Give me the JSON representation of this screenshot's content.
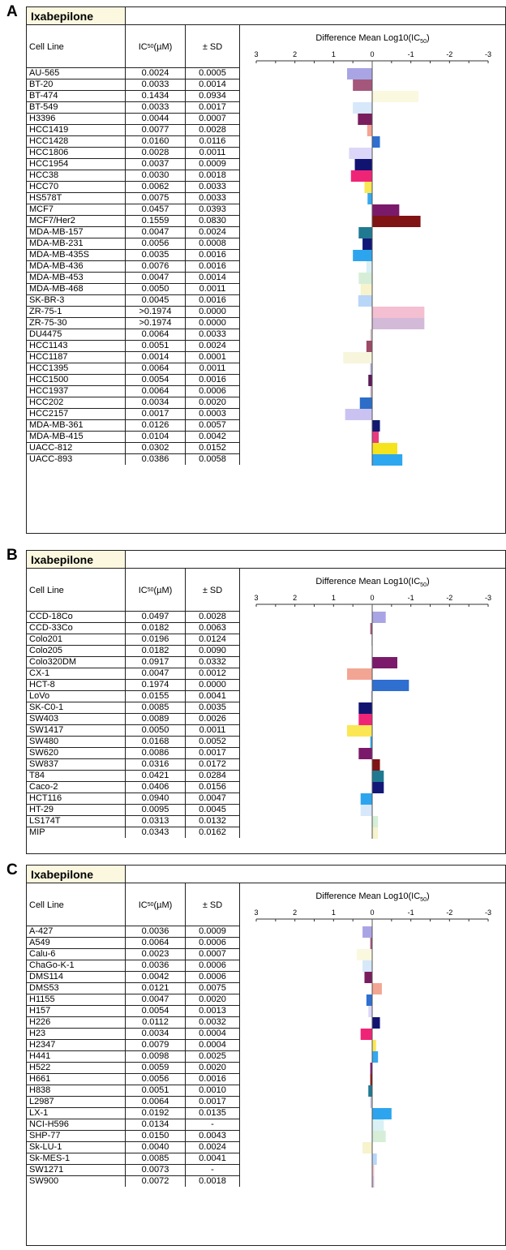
{
  "panels": [
    {
      "label": "A",
      "title": "Ixabepilone",
      "columns": {
        "cell_line": "Cell Line",
        "ic50": "IC",
        "ic50_sub": "50",
        "ic50_unit": "(µM)",
        "sd": "± SD"
      },
      "chart_title_pre": "Difference Mean Log10(IC",
      "chart_title_sub": "50",
      "chart_title_post": ")",
      "rows": [
        {
          "line": "AU-565",
          "ic50": "0.0024",
          "sd": "0.0005"
        },
        {
          "line": "BT-20",
          "ic50": "0.0033",
          "sd": "0.0014"
        },
        {
          "line": "BT-474",
          "ic50": "0.1434",
          "sd": "0.0934"
        },
        {
          "line": "BT-549",
          "ic50": "0.0033",
          "sd": "0.0017"
        },
        {
          "line": "H3396",
          "ic50": "0.0044",
          "sd": "0.0007"
        },
        {
          "line": "HCC1419",
          "ic50": "0.0077",
          "sd": "0.0028"
        },
        {
          "line": "HCC1428",
          "ic50": "0.0160",
          "sd": "0.0116"
        },
        {
          "line": "HCC1806",
          "ic50": "0.0028",
          "sd": "0.0011"
        },
        {
          "line": "HCC1954",
          "ic50": "0.0037",
          "sd": "0.0009"
        },
        {
          "line": "HCC38",
          "ic50": "0.0030",
          "sd": "0.0018"
        },
        {
          "line": "HCC70",
          "ic50": "0.0062",
          "sd": "0.0033"
        },
        {
          "line": "HS578T",
          "ic50": "0.0075",
          "sd": "0.0033"
        },
        {
          "line": "MCF7",
          "ic50": "0.0457",
          "sd": "0.0393"
        },
        {
          "line": "MCF7/Her2",
          "ic50": "0.1559",
          "sd": "0.0830"
        },
        {
          "line": "MDA-MB-157",
          "ic50": "0.0047",
          "sd": "0.0024"
        },
        {
          "line": "MDA-MB-231",
          "ic50": "0.0056",
          "sd": "0.0008"
        },
        {
          "line": "MDA-MB-435S",
          "ic50": "0.0035",
          "sd": "0.0016"
        },
        {
          "line": "MDA-MB-436",
          "ic50": "0.0076",
          "sd": "0.0016"
        },
        {
          "line": "MDA-MB-453",
          "ic50": "0.0047",
          "sd": "0.0014"
        },
        {
          "line": "MDA-MB-468",
          "ic50": "0.0050",
          "sd": "0.0011"
        },
        {
          "line": "SK-BR-3",
          "ic50": "0.0045",
          "sd": "0.0016"
        },
        {
          "line": "ZR-75-1",
          "ic50": ">0.1974",
          "sd": "0.0000"
        },
        {
          "line": "ZR-75-30",
          "ic50": ">0.1974",
          "sd": "0.0000"
        },
        {
          "line": "DU4475",
          "ic50": "0.0064",
          "sd": "0.0033"
        },
        {
          "line": "HCC1143",
          "ic50": "0.0051",
          "sd": "0.0024"
        },
        {
          "line": "HCC1187",
          "ic50": "0.0014",
          "sd": "0.0001"
        },
        {
          "line": "HCC1395",
          "ic50": "0.0064",
          "sd": "0.0011"
        },
        {
          "line": "HCC1500",
          "ic50": "0.0054",
          "sd": "0.0016"
        },
        {
          "line": "HCC1937",
          "ic50": "0.0064",
          "sd": "0.0006"
        },
        {
          "line": "HCC202",
          "ic50": "0.0034",
          "sd": "0.0020"
        },
        {
          "line": "HCC2157",
          "ic50": "0.0017",
          "sd": "0.0003"
        },
        {
          "line": "MDA-MB-361",
          "ic50": "0.0126",
          "sd": "0.0057"
        },
        {
          "line": "MDA-MB-415",
          "ic50": "0.0104",
          "sd": "0.0042"
        },
        {
          "line": "UACC-812",
          "ic50": "0.0302",
          "sd": "0.0152"
        },
        {
          "line": "UACC-893",
          "ic50": "0.0386",
          "sd": "0.0058"
        }
      ]
    },
    {
      "label": "B",
      "title": "Ixabepilone",
      "columns": {
        "cell_line": "Cell Line",
        "ic50": "IC",
        "ic50_sub": "50",
        "ic50_unit": "(µM)",
        "sd": "± SD"
      },
      "chart_title_pre": "Difference Mean Log10(IC",
      "chart_title_sub": "50",
      "chart_title_post": ")",
      "rows": [
        {
          "line": "CCD-18Co",
          "ic50": "0.0497",
          "sd": "0.0028"
        },
        {
          "line": "CCD-33Co",
          "ic50": "0.0182",
          "sd": "0.0063"
        },
        {
          "line": "Colo201",
          "ic50": "0.0196",
          "sd": "0.0124"
        },
        {
          "line": "Colo205",
          "ic50": "0.0182",
          "sd": "0.0090"
        },
        {
          "line": "Colo320DM",
          "ic50": "0.0917",
          "sd": "0.0332"
        },
        {
          "line": "CX-1",
          "ic50": "0.0047",
          "sd": "0.0012"
        },
        {
          "line": "HCT-8",
          "ic50": "0.1974",
          "sd": "0.0000"
        },
        {
          "line": "LoVo",
          "ic50": "0.0155",
          "sd": "0.0041"
        },
        {
          "line": "SK-C0-1",
          "ic50": "0.0085",
          "sd": "0.0035"
        },
        {
          "line": "SW403",
          "ic50": "0.0089",
          "sd": "0.0026"
        },
        {
          "line": "SW1417",
          "ic50": "0.0050",
          "sd": "0.0011"
        },
        {
          "line": "SW480",
          "ic50": "0.0168",
          "sd": "0.0052"
        },
        {
          "line": "SW620",
          "ic50": "0.0086",
          "sd": "0.0017"
        },
        {
          "line": "SW837",
          "ic50": "0.0316",
          "sd": "0.0172"
        },
        {
          "line": "T84",
          "ic50": "0.0421",
          "sd": "0.0284"
        },
        {
          "line": "Caco-2",
          "ic50": "0.0406",
          "sd": "0.0156"
        },
        {
          "line": "HCT116",
          "ic50": "0.0940",
          "sd": "0.0047"
        },
        {
          "line": "HT-29",
          "ic50": "0.0095",
          "sd": "0.0045"
        },
        {
          "line": "LS174T",
          "ic50": "0.0313",
          "sd": "0.0132"
        },
        {
          "line": "MIP",
          "ic50": "0.0343",
          "sd": "0.0162"
        }
      ]
    },
    {
      "label": "C",
      "title": "Ixabepilone",
      "columns": {
        "cell_line": "Cell Line",
        "ic50": "IC",
        "ic50_sub": "50",
        "ic50_unit": "(µM)",
        "sd": "± SD"
      },
      "chart_title_pre": "Difference Mean Log10(IC",
      "chart_title_sub": "50",
      "chart_title_post": ")",
      "rows": [
        {
          "line": "A-427",
          "ic50": "0.0036",
          "sd": "0.0009"
        },
        {
          "line": "A549",
          "ic50": "0.0064",
          "sd": "0.0006"
        },
        {
          "line": "Calu-6",
          "ic50": "0.0023",
          "sd": "0.0007"
        },
        {
          "line": "ChaGo-K-1",
          "ic50": "0.0036",
          "sd": "0.0006"
        },
        {
          "line": "DMS114",
          "ic50": "0.0042",
          "sd": "0.0006"
        },
        {
          "line": "DMS53",
          "ic50": "0.0121",
          "sd": "0.0075"
        },
        {
          "line": "H1155",
          "ic50": "0.0047",
          "sd": "0.0020"
        },
        {
          "line": "H157",
          "ic50": "0.0054",
          "sd": "0.0013"
        },
        {
          "line": "H226",
          "ic50": "0.0112",
          "sd": "0.0032"
        },
        {
          "line": "H23",
          "ic50": "0.0034",
          "sd": "0.0004"
        },
        {
          "line": "H2347",
          "ic50": "0.0079",
          "sd": "0.0004"
        },
        {
          "line": "H441",
          "ic50": "0.0098",
          "sd": "0.0025"
        },
        {
          "line": "H522",
          "ic50": "0.0059",
          "sd": "0.0020"
        },
        {
          "line": "H661",
          "ic50": "0.0056",
          "sd": "0.0016"
        },
        {
          "line": "H838",
          "ic50": "0.0051",
          "sd": "0.0010"
        },
        {
          "line": "L2987",
          "ic50": "0.0064",
          "sd": "0.0017"
        },
        {
          "line": "LX-1",
          "ic50": "0.0192",
          "sd": "0.0135"
        },
        {
          "line": "NCI-H596",
          "ic50": "0.0134",
          "sd": "-"
        },
        {
          "line": "SHP-77",
          "ic50": "0.0150",
          "sd": "0.0043"
        },
        {
          "line": "Sk-LU-1",
          "ic50": "0.0040",
          "sd": "0.0024"
        },
        {
          "line": "Sk-MES-1",
          "ic50": "0.0085",
          "sd": "0.0041"
        },
        {
          "line": "SW1271",
          "ic50": "0.0073",
          "sd": "-"
        },
        {
          "line": "SW900",
          "ic50": "0.0072",
          "sd": "0.0018"
        }
      ]
    }
  ],
  "chart_data": [
    {
      "type": "bar",
      "orientation": "horizontal",
      "xlim": [
        3,
        -3
      ],
      "ticks": [
        "3",
        "2",
        "1",
        "0",
        "-1",
        "-2",
        "-3"
      ],
      "title": "Difference Mean Log10(IC50)",
      "categories": [
        "AU-565",
        "BT-20",
        "BT-474",
        "BT-549",
        "H3396",
        "HCC1419",
        "HCC1428",
        "HCC1806",
        "HCC1954",
        "HCC38",
        "HCC70",
        "HS578T",
        "MCF7",
        "MCF7/Her2",
        "MDA-MB-157",
        "MDA-MB-231",
        "MDA-MB-435S",
        "MDA-MB-436",
        "MDA-MB-453",
        "MDA-MB-468",
        "SK-BR-3",
        "ZR-75-1",
        "ZR-75-30",
        "DU4475",
        "HCC1143",
        "HCC1187",
        "HCC1395",
        "HCC1500",
        "HCC1937",
        "HCC202",
        "HCC2157",
        "MDA-MB-361",
        "MDA-MB-415",
        "UACC-812",
        "UACC-893"
      ],
      "values": [
        0.65,
        0.5,
        -1.2,
        0.5,
        0.37,
        0.13,
        -0.2,
        0.6,
        0.45,
        0.55,
        0.2,
        0.12,
        -0.7,
        -1.25,
        0.35,
        0.25,
        0.5,
        0.15,
        0.35,
        0.3,
        0.36,
        -1.35,
        -1.35,
        0.05,
        0.15,
        0.75,
        0.05,
        0.1,
        0.05,
        0.32,
        0.7,
        -0.2,
        -0.17,
        -0.65,
        -0.78
      ],
      "colors": [
        "#a9a5e4",
        "#a4577b",
        "#faf8df",
        "#d7e8fa",
        "#7a1d5f",
        "#f3a594",
        "#2e6fd0",
        "#dcd7f8",
        "#111371",
        "#ef2476",
        "#fbe654",
        "#35a8ef",
        "#7b1a6a",
        "#801313",
        "#1f7a91",
        "#121878",
        "#2da5ee",
        "#d9f0f5",
        "#d6eed7",
        "#f6f3cd",
        "#b8d6f7",
        "#f4bfd0",
        "#d3bad8",
        "#d9c9ce",
        "#9d4a66",
        "#f7f5dc",
        "#b2aed5",
        "#5b1c57",
        "#cfb8c8",
        "#2c6dc8",
        "#cac3f2",
        "#121870",
        "#e73b7f",
        "#f5e31e",
        "#2da7f0"
      ]
    },
    {
      "type": "bar",
      "orientation": "horizontal",
      "xlim": [
        3,
        -3
      ],
      "ticks": [
        "3",
        "2",
        "1",
        "0",
        "-1",
        "-2",
        "-3"
      ],
      "title": "Difference Mean Log10(IC50)",
      "categories": [
        "CCD-18Co",
        "CCD-33Co",
        "Colo201",
        "Colo205",
        "Colo320DM",
        "CX-1",
        "HCT-8",
        "LoVo",
        "SK-C0-1",
        "SW403",
        "SW1417",
        "SW480",
        "SW620",
        "SW837",
        "T84",
        "Caco-2",
        "HCT116",
        "HT-29",
        "LS174T",
        "MIP"
      ],
      "values": [
        -0.35,
        0.05,
        0.02,
        0.01,
        -0.65,
        0.65,
        -0.95,
        0.03,
        0.35,
        0.35,
        0.65,
        0.05,
        0.35,
        -0.2,
        -0.3,
        -0.3,
        0.3,
        0.3,
        -0.15,
        -0.15
      ],
      "colors": [
        "#a9a5e4",
        "#a4577b",
        "#c7c1da",
        "#b3acd3",
        "#7b1a6a",
        "#f3a594",
        "#2e6fd0",
        "#c0bbd6",
        "#111371",
        "#ef2476",
        "#fbe654",
        "#35a8ef",
        "#7b1a6a",
        "#801313",
        "#1f7a91",
        "#121878",
        "#2da5ee",
        "#d7e8fa",
        "#d6eed7",
        "#f6f3cd"
      ]
    },
    {
      "type": "bar",
      "orientation": "horizontal",
      "xlim": [
        3,
        -3
      ],
      "ticks": [
        "3",
        "2",
        "1",
        "0",
        "-1",
        "-2",
        "-3"
      ],
      "title": "Difference Mean Log10(IC50)",
      "categories": [
        "A-427",
        "A549",
        "Calu-6",
        "ChaGo-K-1",
        "DMS114",
        "DMS53",
        "H1155",
        "H157",
        "H226",
        "H23",
        "H2347",
        "H441",
        "H522",
        "H661",
        "H838",
        "L2987",
        "LX-1",
        "NCI-H596",
        "SHP-77",
        "Sk-LU-1",
        "Sk-MES-1",
        "SW1271",
        "SW900"
      ],
      "values": [
        0.25,
        0.05,
        0.4,
        0.25,
        0.2,
        -0.25,
        0.15,
        0.1,
        -0.2,
        0.3,
        -0.1,
        -0.15,
        0.05,
        0.05,
        0.1,
        0.05,
        -0.5,
        -0.3,
        -0.35,
        0.25,
        -0.12,
        -0.05,
        -0.05
      ],
      "colors": [
        "#a9a5e4",
        "#a4577b",
        "#faf8df",
        "#d7e8fa",
        "#7a1d5f",
        "#f3a594",
        "#2e6fd0",
        "#dcd7f8",
        "#111371",
        "#ef2476",
        "#fbe654",
        "#35a8ef",
        "#7b1a6a",
        "#801313",
        "#1f7a91",
        "#c9c4e0",
        "#2da5ee",
        "#d9f0f5",
        "#d6eed7",
        "#f6f3cd",
        "#b8d6f7",
        "#f4bfd0",
        "#d3bad8"
      ]
    }
  ]
}
